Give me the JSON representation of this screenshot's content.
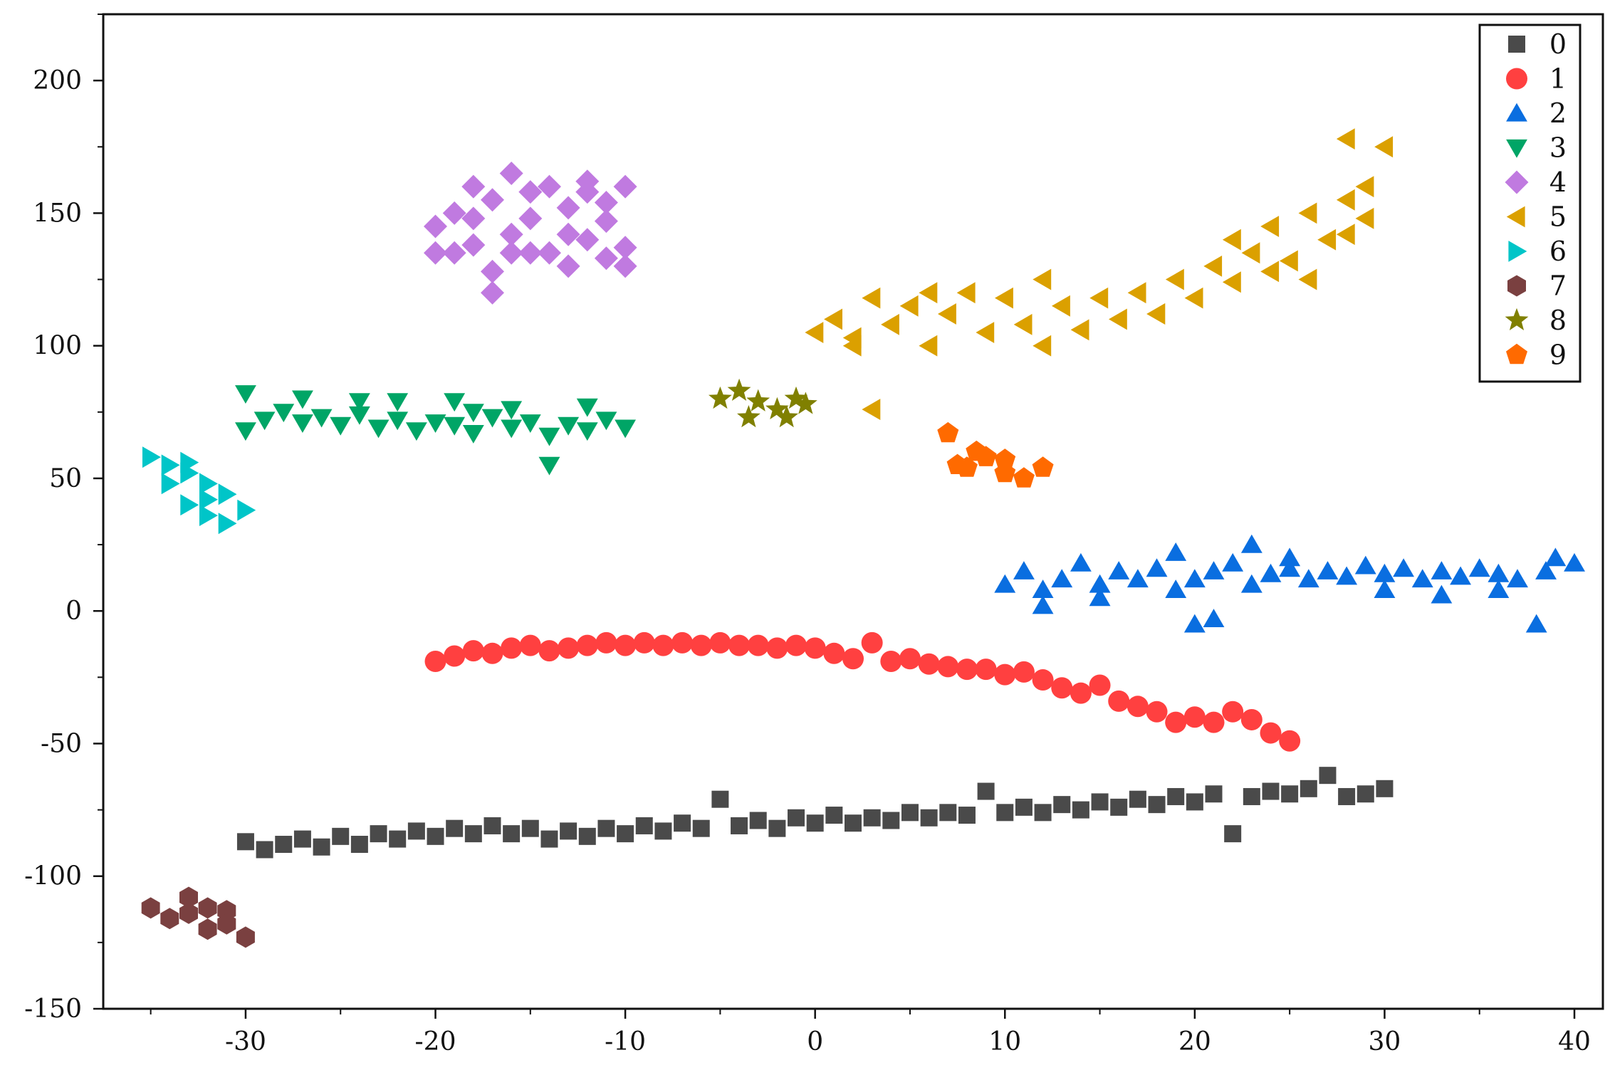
{
  "chart_data": {
    "type": "scatter",
    "title": "",
    "xlabel": "",
    "ylabel": "",
    "xlim": [
      -37.5,
      41.5
    ],
    "ylim": [
      -150,
      225
    ],
    "xticks": [
      -30,
      -20,
      -10,
      0,
      10,
      20,
      30,
      40
    ],
    "yticks": [
      -150,
      -100,
      -50,
      0,
      50,
      100,
      150,
      200
    ],
    "xtick_labels": [
      "-30",
      "-20",
      "-10",
      "0",
      "10",
      "20",
      "30",
      "40"
    ],
    "ytick_labels": [
      "-150",
      "-100",
      "-50",
      "0",
      "50",
      "100",
      "150",
      "200"
    ],
    "grid": false,
    "legend_position": "top-right",
    "series": [
      {
        "name": "0",
        "marker": "square",
        "color": "#4a4a4a",
        "points": [
          [
            -30,
            -87
          ],
          [
            -29,
            -90
          ],
          [
            -28,
            -88
          ],
          [
            -27,
            -86
          ],
          [
            -26,
            -89
          ],
          [
            -25,
            -85
          ],
          [
            -24,
            -88
          ],
          [
            -23,
            -84
          ],
          [
            -22,
            -86
          ],
          [
            -21,
            -83
          ],
          [
            -20,
            -85
          ],
          [
            -19,
            -82
          ],
          [
            -18,
            -84
          ],
          [
            -17,
            -81
          ],
          [
            -16,
            -84
          ],
          [
            -15,
            -82
          ],
          [
            -14,
            -86
          ],
          [
            -13,
            -83
          ],
          [
            -12,
            -85
          ],
          [
            -11,
            -82
          ],
          [
            -10,
            -84
          ],
          [
            -9,
            -81
          ],
          [
            -8,
            -83
          ],
          [
            -7,
            -80
          ],
          [
            -6,
            -82
          ],
          [
            -5,
            -71
          ],
          [
            -4,
            -81
          ],
          [
            -3,
            -79
          ],
          [
            -2,
            -82
          ],
          [
            -1,
            -78
          ],
          [
            0,
            -80
          ],
          [
            1,
            -77
          ],
          [
            2,
            -80
          ],
          [
            3,
            -78
          ],
          [
            4,
            -79
          ],
          [
            5,
            -76
          ],
          [
            6,
            -78
          ],
          [
            7,
            -76
          ],
          [
            8,
            -77
          ],
          [
            9,
            -68
          ],
          [
            10,
            -76
          ],
          [
            11,
            -74
          ],
          [
            12,
            -76
          ],
          [
            13,
            -73
          ],
          [
            14,
            -75
          ],
          [
            15,
            -72
          ],
          [
            16,
            -74
          ],
          [
            17,
            -71
          ],
          [
            18,
            -73
          ],
          [
            19,
            -70
          ],
          [
            20,
            -72
          ],
          [
            21,
            -69
          ],
          [
            22,
            -84
          ],
          [
            23,
            -70
          ],
          [
            24,
            -68
          ],
          [
            25,
            -69
          ],
          [
            26,
            -67
          ],
          [
            27,
            -62
          ],
          [
            28,
            -70
          ],
          [
            29,
            -69
          ],
          [
            30,
            -67
          ]
        ]
      },
      {
        "name": "1",
        "marker": "circle",
        "color": "#ff4040",
        "points": [
          [
            -20,
            -19
          ],
          [
            -19,
            -17
          ],
          [
            -18,
            -15
          ],
          [
            -17,
            -16
          ],
          [
            -16,
            -14
          ],
          [
            -15,
            -13
          ],
          [
            -14,
            -15
          ],
          [
            -13,
            -14
          ],
          [
            -12,
            -13
          ],
          [
            -11,
            -12
          ],
          [
            -10,
            -13
          ],
          [
            -9,
            -12
          ],
          [
            -8,
            -13
          ],
          [
            -7,
            -12
          ],
          [
            -6,
            -13
          ],
          [
            -5,
            -12
          ],
          [
            -4,
            -13
          ],
          [
            -3,
            -13
          ],
          [
            -2,
            -14
          ],
          [
            -1,
            -13
          ],
          [
            0,
            -14
          ],
          [
            1,
            -16
          ],
          [
            2,
            -18
          ],
          [
            3,
            -12
          ],
          [
            4,
            -19
          ],
          [
            5,
            -18
          ],
          [
            6,
            -20
          ],
          [
            7,
            -21
          ],
          [
            8,
            -22
          ],
          [
            9,
            -22
          ],
          [
            10,
            -24
          ],
          [
            11,
            -23
          ],
          [
            12,
            -26
          ],
          [
            13,
            -29
          ],
          [
            14,
            -31
          ],
          [
            15,
            -28
          ],
          [
            16,
            -34
          ],
          [
            17,
            -36
          ],
          [
            18,
            -38
          ],
          [
            19,
            -42
          ],
          [
            20,
            -40
          ],
          [
            21,
            -42
          ],
          [
            22,
            -38
          ],
          [
            23,
            -41
          ],
          [
            24,
            -46
          ],
          [
            25,
            -49
          ]
        ]
      },
      {
        "name": "2",
        "marker": "triangle-up",
        "color": "#0a6ee0",
        "points": [
          [
            10,
            10
          ],
          [
            11,
            15
          ],
          [
            12,
            8
          ],
          [
            13,
            12
          ],
          [
            14,
            18
          ],
          [
            15,
            10
          ],
          [
            16,
            15
          ],
          [
            17,
            12
          ],
          [
            18,
            16
          ],
          [
            19,
            8
          ],
          [
            20,
            12
          ],
          [
            21,
            15
          ],
          [
            22,
            18
          ],
          [
            23,
            10
          ],
          [
            24,
            14
          ],
          [
            25,
            16
          ],
          [
            26,
            12
          ],
          [
            27,
            15
          ],
          [
            28,
            13
          ],
          [
            29,
            17
          ],
          [
            30,
            14
          ],
          [
            31,
            16
          ],
          [
            32,
            12
          ],
          [
            33,
            15
          ],
          [
            34,
            13
          ],
          [
            35,
            16
          ],
          [
            36,
            14
          ],
          [
            37,
            12
          ],
          [
            38,
            -5
          ],
          [
            38.5,
            15
          ],
          [
            39,
            20
          ],
          [
            40,
            18
          ],
          [
            20,
            -5
          ],
          [
            21,
            -3
          ],
          [
            19,
            22
          ],
          [
            23,
            25
          ],
          [
            25,
            20
          ],
          [
            15,
            5
          ],
          [
            12,
            2
          ],
          [
            30,
            8
          ],
          [
            33,
            6
          ],
          [
            36,
            8
          ]
        ]
      },
      {
        "name": "3",
        "marker": "triangle-down",
        "color": "#00a566",
        "points": [
          [
            -30,
            68
          ],
          [
            -29,
            72
          ],
          [
            -28,
            75
          ],
          [
            -27,
            71
          ],
          [
            -26,
            73
          ],
          [
            -25,
            70
          ],
          [
            -24,
            74
          ],
          [
            -23,
            69
          ],
          [
            -22,
            72
          ],
          [
            -21,
            68
          ],
          [
            -20,
            71
          ],
          [
            -19,
            70
          ],
          [
            -18,
            67
          ],
          [
            -17,
            73
          ],
          [
            -16,
            69
          ],
          [
            -15,
            71
          ],
          [
            -14,
            66
          ],
          [
            -13,
            70
          ],
          [
            -12,
            68
          ],
          [
            -11,
            72
          ],
          [
            -10,
            69
          ],
          [
            -14,
            55
          ],
          [
            -30,
            82
          ],
          [
            -27,
            80
          ],
          [
            -24,
            79
          ],
          [
            -22,
            79
          ],
          [
            -19,
            79
          ],
          [
            -12,
            77
          ],
          [
            -18,
            75
          ],
          [
            -16,
            76
          ]
        ]
      },
      {
        "name": "4",
        "marker": "diamond",
        "color": "#c07ae0",
        "points": [
          [
            -20,
            145
          ],
          [
            -19,
            150
          ],
          [
            -18,
            138
          ],
          [
            -17,
            155
          ],
          [
            -16,
            142
          ],
          [
            -15,
            148
          ],
          [
            -14,
            135
          ],
          [
            -13,
            152
          ],
          [
            -12,
            140
          ],
          [
            -11,
            147
          ],
          [
            -10,
            137
          ],
          [
            -10,
            160
          ],
          [
            -18,
            160
          ],
          [
            -16,
            165
          ],
          [
            -14,
            160
          ],
          [
            -12,
            158
          ],
          [
            -19,
            135
          ],
          [
            -17,
            128
          ],
          [
            -17,
            120
          ],
          [
            -15,
            135
          ],
          [
            -13,
            130
          ],
          [
            -11,
            133
          ],
          [
            -10,
            130
          ],
          [
            -20,
            135
          ],
          [
            -12,
            162
          ],
          [
            -18,
            148
          ],
          [
            -15,
            158
          ],
          [
            -11,
            154
          ],
          [
            -13,
            142
          ],
          [
            -16,
            135
          ]
        ]
      },
      {
        "name": "5",
        "marker": "triangle-left",
        "color": "#dba000",
        "points": [
          [
            0,
            105
          ],
          [
            1,
            110
          ],
          [
            2,
            103
          ],
          [
            3,
            118
          ],
          [
            4,
            108
          ],
          [
            5,
            115
          ],
          [
            6,
            100
          ],
          [
            7,
            112
          ],
          [
            8,
            120
          ],
          [
            9,
            105
          ],
          [
            10,
            118
          ],
          [
            11,
            108
          ],
          [
            12,
            100
          ],
          [
            13,
            115
          ],
          [
            14,
            106
          ],
          [
            15,
            118
          ],
          [
            16,
            110
          ],
          [
            17,
            120
          ],
          [
            18,
            112
          ],
          [
            19,
            125
          ],
          [
            20,
            118
          ],
          [
            21,
            130
          ],
          [
            22,
            140
          ],
          [
            23,
            135
          ],
          [
            24,
            145
          ],
          [
            25,
            132
          ],
          [
            26,
            150
          ],
          [
            27,
            140
          ],
          [
            28,
            155
          ],
          [
            29,
            160
          ],
          [
            29,
            148
          ],
          [
            30,
            175
          ],
          [
            28,
            178
          ],
          [
            26,
            125
          ],
          [
            24,
            128
          ],
          [
            3,
            76
          ],
          [
            2,
            100
          ],
          [
            6,
            120
          ],
          [
            12,
            125
          ],
          [
            18,
            112
          ],
          [
            22,
            124
          ],
          [
            28,
            142
          ]
        ]
      },
      {
        "name": "6",
        "marker": "triangle-right",
        "color": "#00c5c8",
        "points": [
          [
            -35,
            58
          ],
          [
            -34,
            55
          ],
          [
            -33,
            52
          ],
          [
            -32,
            48
          ],
          [
            -31,
            44
          ],
          [
            -30,
            38
          ],
          [
            -31,
            33
          ],
          [
            -32,
            36
          ],
          [
            -33,
            40
          ],
          [
            -34,
            48
          ],
          [
            -33,
            56
          ],
          [
            -32,
            42
          ]
        ]
      },
      {
        "name": "7",
        "marker": "hexagon",
        "color": "#7a4040",
        "points": [
          [
            -35,
            -112
          ],
          [
            -34,
            -116
          ],
          [
            -33,
            -108
          ],
          [
            -32,
            -120
          ],
          [
            -31,
            -113
          ],
          [
            -30,
            -123
          ],
          [
            -33,
            -114
          ],
          [
            -31,
            -118
          ],
          [
            -32,
            -112
          ]
        ]
      },
      {
        "name": "8",
        "marker": "star",
        "color": "#808000",
        "points": [
          [
            -5,
            80
          ],
          [
            -4,
            83
          ],
          [
            -3.5,
            73
          ],
          [
            -3,
            79
          ],
          [
            -2,
            76
          ],
          [
            -1.5,
            73
          ],
          [
            -1,
            80
          ],
          [
            -0.5,
            78
          ]
        ]
      },
      {
        "name": "9",
        "marker": "pentagon",
        "color": "#ff6a00",
        "points": [
          [
            7,
            67
          ],
          [
            7.5,
            55
          ],
          [
            8,
            54
          ],
          [
            9,
            58
          ],
          [
            10,
            52
          ],
          [
            11,
            50
          ],
          [
            12,
            54
          ],
          [
            10,
            57
          ],
          [
            8.5,
            60
          ]
        ]
      }
    ]
  }
}
